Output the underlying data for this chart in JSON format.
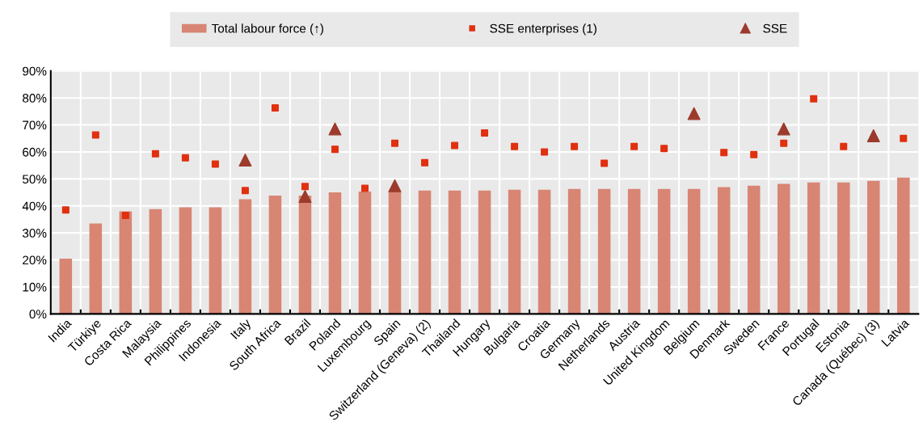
{
  "chart_data": {
    "type": "bar",
    "categories": [
      "India",
      "Türkiye",
      "Costa Rica",
      "Malaysia",
      "Philippines",
      "Indonesia",
      "Italy",
      "South Africa",
      "Brazil",
      "Poland",
      "Luxembourg",
      "Spain",
      "Switzerland (Geneva) (2)",
      "Thailand",
      "Hungary",
      "Bulgaria",
      "Croatia",
      "Germany",
      "Netherlands",
      "Austria",
      "United Kingdom",
      "Belgium",
      "Denmark",
      "Sweden",
      "France",
      "Portugal",
      "Estonia",
      "Canada (Québec) (3)",
      "Latvia"
    ],
    "series": [
      {
        "name": "Total labour force (↑)",
        "color": "#d88574",
        "values": [
          20.5,
          33.5,
          38,
          38.8,
          39.5,
          39.5,
          42.5,
          43.8,
          43.8,
          45,
          45.3,
          45.5,
          45.7,
          45.7,
          45.7,
          46,
          46,
          46.3,
          46.3,
          46.3,
          46.3,
          46.3,
          47,
          47.5,
          48.2,
          48.7,
          48.7,
          49.3,
          50.5
        ]
      },
      {
        "name": "SSE enterprises (1)",
        "type": "scatter",
        "marker": "square",
        "color": "#e03010",
        "values": [
          38.5,
          66.3,
          36.5,
          59.3,
          57.8,
          55.5,
          45.7,
          76.3,
          47.2,
          61,
          46.5,
          63.2,
          56,
          62.4,
          67,
          62,
          60,
          62,
          55.8,
          62,
          61.3,
          null,
          59.8,
          59,
          63.2,
          79.7,
          62,
          null,
          65
        ]
      },
      {
        "name": "SSE",
        "type": "scatter",
        "marker": "triangle",
        "color": "#9c3a2c",
        "values": [
          null,
          null,
          null,
          null,
          null,
          null,
          57,
          null,
          43.5,
          68.5,
          null,
          47.5,
          null,
          null,
          null,
          null,
          null,
          null,
          null,
          null,
          null,
          74.2,
          null,
          null,
          68.5,
          null,
          null,
          66,
          null
        ]
      }
    ],
    "ylim": [
      0,
      90
    ],
    "yticks": [
      {
        "value": 0,
        "label": "0%"
      },
      {
        "value": 10,
        "label": "10%"
      },
      {
        "value": 20,
        "label": "20%"
      },
      {
        "value": 30,
        "label": "30%"
      },
      {
        "value": 40,
        "label": "40%"
      },
      {
        "value": 50,
        "label": "50%"
      },
      {
        "value": 60,
        "label": "60%"
      },
      {
        "value": 70,
        "label": "70%"
      },
      {
        "value": 80,
        "label": "80%"
      },
      {
        "value": 90,
        "label": "90%"
      }
    ],
    "grid": true,
    "legend": "top"
  }
}
